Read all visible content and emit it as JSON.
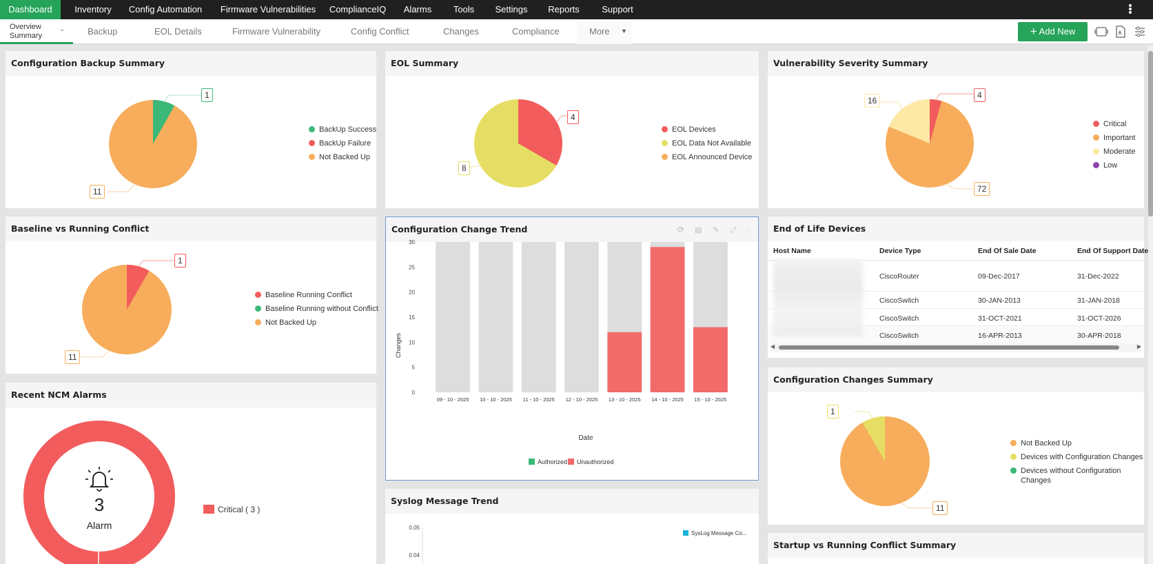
{
  "topnav": {
    "items": [
      "Dashboard",
      "Inventory",
      "Config Automation",
      "Firmware Vulnerabilities",
      "ComplianceIQ",
      "Alarms",
      "Tools",
      "Settings",
      "Reports",
      "Support"
    ],
    "active": "Dashboard"
  },
  "subnav": {
    "active_line1": "Overview",
    "active_line2": "Summary",
    "items": [
      "Backup",
      "EOL Details",
      "Firmware Vulnerability",
      "Config Conflict",
      "Changes",
      "Compliance"
    ],
    "more": "More",
    "add_new": "Add New"
  },
  "config_backup": {
    "title": "Configuration Backup Summary",
    "legend": [
      "BackUp Success",
      "BackUp Failure",
      "Not Backed Up"
    ],
    "callouts": [
      "1",
      "11"
    ],
    "values": [
      1,
      0,
      11
    ]
  },
  "eol_summary": {
    "title": "EOL Summary",
    "legend": [
      "EOL Devices",
      "EOL Data Not Available",
      "EOL Announced Device"
    ],
    "callouts": [
      "4",
      "8"
    ],
    "values": [
      4,
      8,
      0
    ]
  },
  "vuln_summary": {
    "title": "Vulnerability Severity Summary",
    "legend": [
      "Critical",
      "Important",
      "Moderate",
      "Low"
    ],
    "callouts": [
      "4",
      "72",
      "16"
    ],
    "values": [
      4,
      72,
      16,
      0
    ]
  },
  "baseline_conflict": {
    "title": "Baseline vs Running Conflict",
    "legend": [
      "Baseline Running Conflict",
      "Baseline Running without Conflict",
      "Not Backed Up"
    ],
    "callouts": [
      "1",
      "11"
    ],
    "values": [
      1,
      0,
      11
    ]
  },
  "change_trend": {
    "title": "Configuration Change Trend",
    "xlabel": "Date",
    "ylabel": "Changes",
    "legend": [
      "Authorized",
      "Unauthorized"
    ]
  },
  "eol_devices": {
    "title": "End of Life Devices",
    "headers": [
      "Host Name",
      "Device Type",
      "End Of Sale Date",
      "End Of Support Date"
    ],
    "rows": [
      [
        "",
        "CiscoRouter",
        "09-Dec-2017",
        "31-Dec-2022"
      ],
      [
        "",
        "CiscoSwitch",
        "30-JAN-2013",
        "31-JAN-2018"
      ],
      [
        "",
        "CiscoSwitch",
        "31-OCT-2021",
        "31-OCT-2026"
      ],
      [
        "",
        "CiscoSwitch",
        "16-APR-2013",
        "30-APR-2018"
      ]
    ]
  },
  "recent_alarms": {
    "title": "Recent NCM Alarms",
    "count": "3",
    "label": "Alarm",
    "legend": "Critical ( 3 )"
  },
  "changes_summary": {
    "title": "Configuration Changes Summary",
    "legend": [
      "Not Backed Up",
      "Devices with Configuration Changes",
      "Devices without Configuration",
      "Changes"
    ],
    "callouts": [
      "1",
      "11"
    ],
    "values": [
      11,
      1,
      0
    ]
  },
  "syslog": {
    "title": "Syslog Message Trend",
    "legend": "SysLog Message Co...",
    "ticks": [
      "0.05",
      "0.04"
    ]
  },
  "startup_conflict": {
    "title": "Startup vs Running Conflict Summary"
  },
  "colors": {
    "green": "#3cb878",
    "red": "#f25c5c",
    "orange": "#f7ad5b",
    "yellow": "#e6de64",
    "pale": "#fde8a4",
    "purple": "#8e44ad",
    "grey": "#dddddd",
    "bar_red": "#f26a6a"
  },
  "chart_data": {
    "type": "bar",
    "title": "Configuration Change Trend",
    "xlabel": "Date",
    "ylabel": "Changes",
    "categories": [
      "09 - 10 - 2025",
      "10 - 10 - 2025",
      "11 - 10 - 2025",
      "12 - 10 - 2025",
      "13 - 10 - 2025",
      "14 - 10 - 2025",
      "15 - 10 - 2025"
    ],
    "series": [
      {
        "name": "Authorized",
        "values": [
          0,
          0,
          0,
          0,
          0,
          0,
          0
        ]
      },
      {
        "name": "Unauthorized",
        "values": [
          0,
          0,
          0,
          0,
          12,
          29,
          13
        ]
      }
    ],
    "ylim": [
      0,
      30
    ],
    "yticks": [
      0,
      5,
      10,
      15,
      20,
      25,
      30
    ]
  }
}
